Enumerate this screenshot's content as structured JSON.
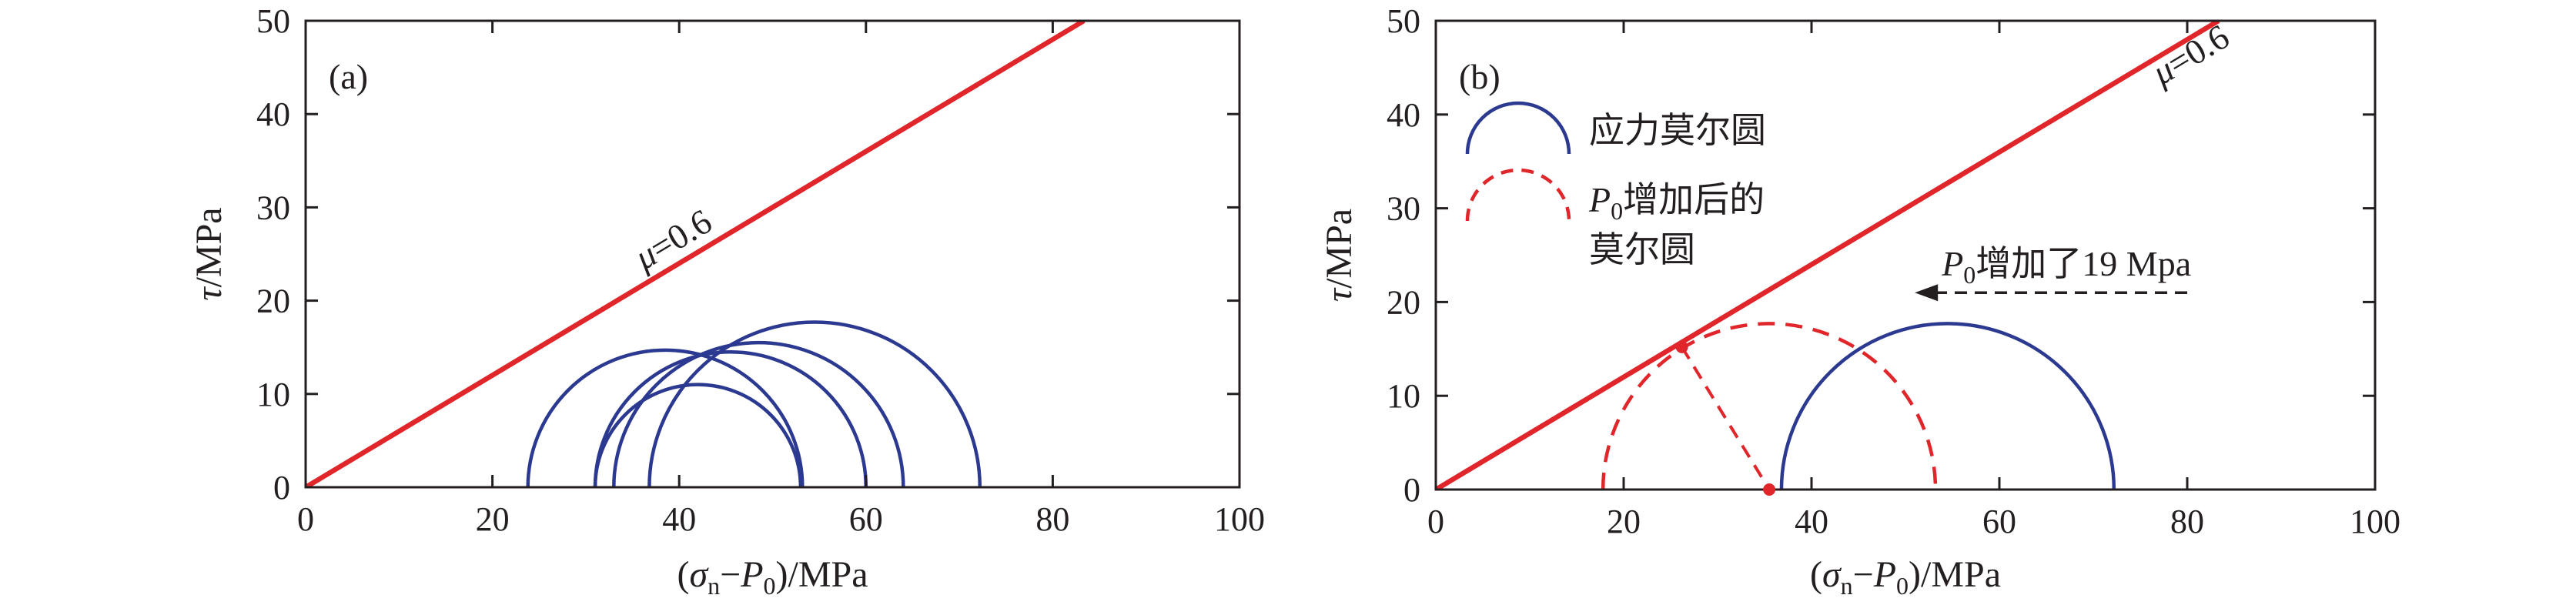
{
  "chart_data": [
    {
      "panel": "(a)",
      "type": "line",
      "xlabel": "(σn−P0)/MPa",
      "ylabel": "τ/MPa",
      "xlim": [
        0,
        100
      ],
      "ylim": [
        0,
        50
      ],
      "xticks": [
        "0",
        "20",
        "40",
        "60",
        "80",
        "100"
      ],
      "yticks": [
        "0",
        "10",
        "20",
        "30",
        "40",
        "50"
      ],
      "friction_line": {
        "label": "μ=0.6",
        "slope": 0.6,
        "color": "#e0262a"
      },
      "circles": [
        {
          "center": 38.5,
          "radius": 14.7,
          "style": "solid",
          "color": "#2b3990"
        },
        {
          "center": 42.0,
          "radius": 11.0,
          "style": "solid",
          "color": "#2b3990"
        },
        {
          "center": 45.5,
          "radius": 14.5,
          "style": "solid",
          "color": "#2b3990"
        },
        {
          "center": 48.5,
          "radius": 15.5,
          "style": "solid",
          "color": "#2b3990"
        },
        {
          "center": 54.5,
          "radius": 17.7,
          "style": "solid",
          "color": "#2b3990"
        }
      ]
    },
    {
      "panel": "(b)",
      "type": "line",
      "xlabel": "(σn−P0)/MPa",
      "ylabel": "τ/MPa",
      "xlim": [
        0,
        100
      ],
      "ylim": [
        0,
        50
      ],
      "xticks": [
        "0",
        "20",
        "40",
        "60",
        "80",
        "100"
      ],
      "yticks": [
        "0",
        "10",
        "20",
        "30",
        "40",
        "50"
      ],
      "friction_line": {
        "label": "μ=0.6",
        "slope": 0.6,
        "color": "#e0262a"
      },
      "circles": [
        {
          "center": 54.5,
          "radius": 17.7,
          "style": "solid",
          "color": "#2b3990",
          "legend": "应力莫尔圆"
        },
        {
          "center": 35.5,
          "radius": 17.7,
          "style": "dashed",
          "color": "#e0262a",
          "legend": "P0增加后的莫尔圆"
        }
      ],
      "legend": {
        "position": "top-left",
        "entries": [
          {
            "text": "应力莫尔圆",
            "style": "solid",
            "color": "#2b3990"
          },
          {
            "text_sub": "P0",
            "text": "增加后的",
            "text2": "莫尔圆",
            "style": "dashed",
            "color": "#e0262a"
          }
        ]
      },
      "annotation": {
        "text": "P0增加了19 Mpa",
        "arrow_from": 80,
        "arrow_to": 51,
        "y": 21
      },
      "contact_point": {
        "x": 26.2,
        "y": 15.2
      },
      "center_point": {
        "x": 35.5,
        "y": 0
      }
    }
  ]
}
